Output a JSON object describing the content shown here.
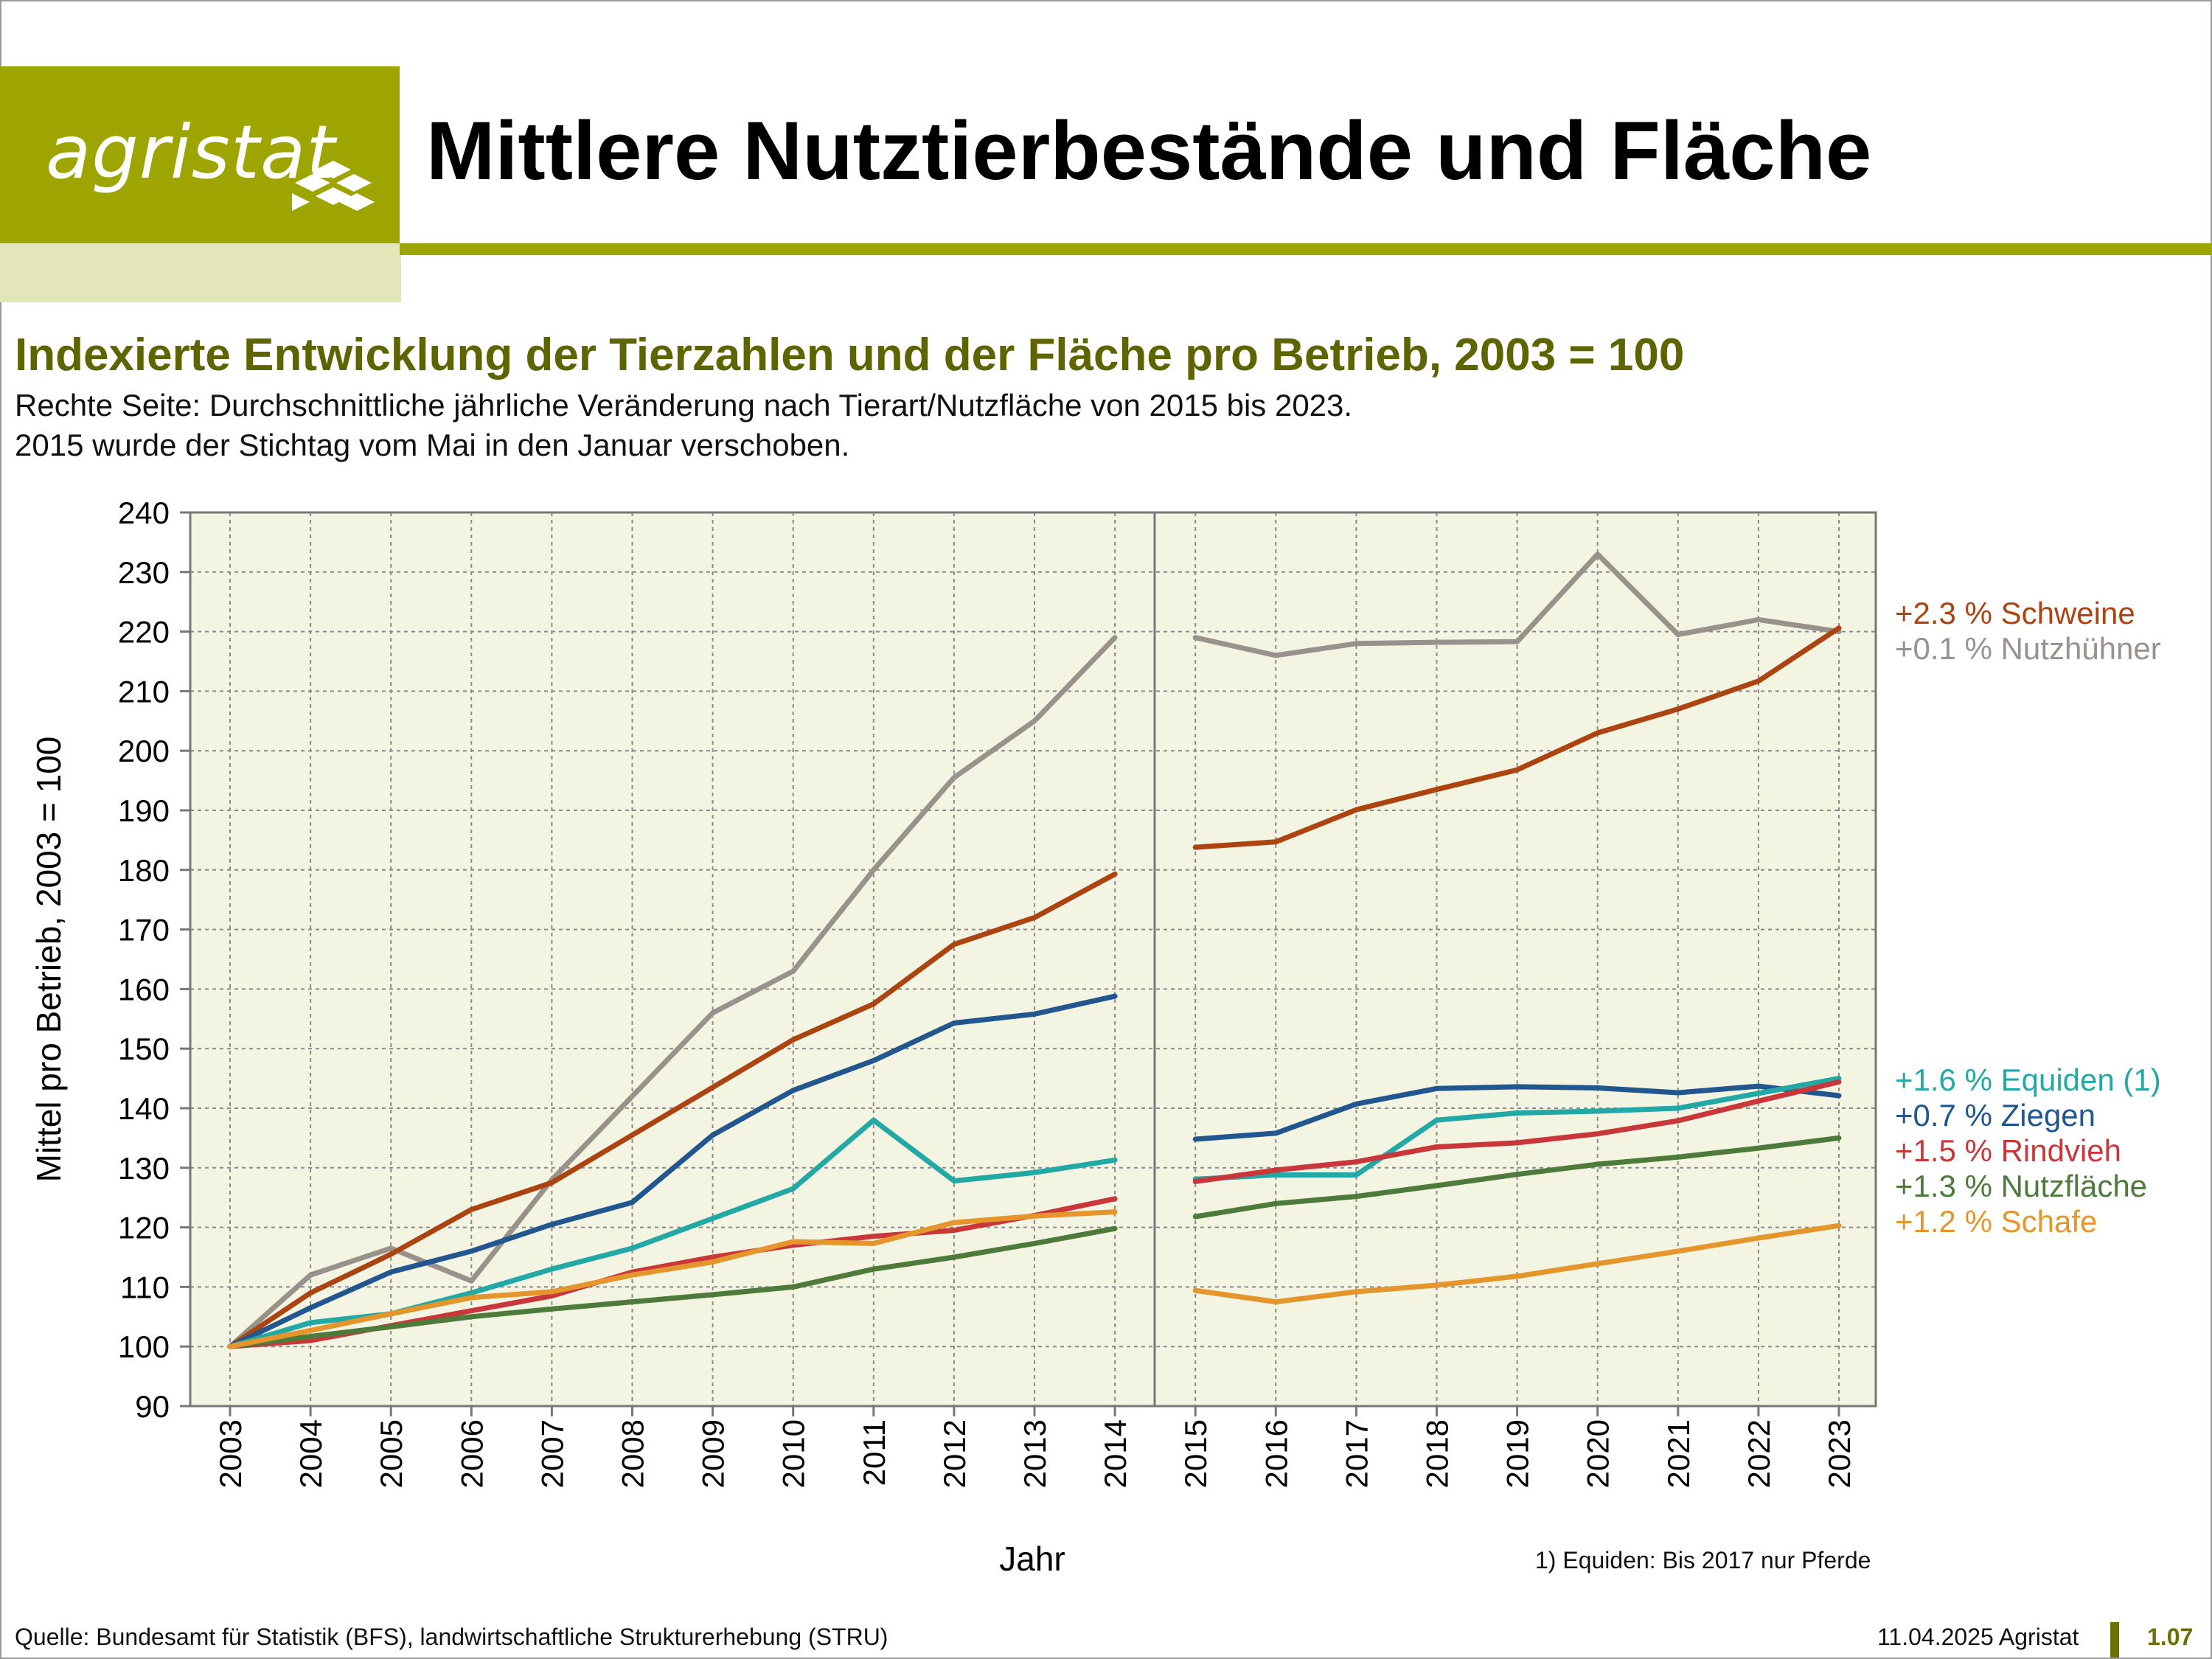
{
  "header": {
    "logo_text": "agristat",
    "title": "Mittlere Nutztierbestände und Fläche"
  },
  "chart_header": {
    "subtitle": "Indexierte Entwicklung der Tierzahlen und der Fläche pro Betrieb, 2003 = 100",
    "line1": "Rechte Seite: Durchschnittliche jährliche Veränderung nach Tierart/Nutzfläche von 2015 bis 2023.",
    "line2": "2015 wurde der Stichtag vom Mai in den Januar verschoben."
  },
  "footnote": "1) Equiden: Bis 2017 nur Pferde",
  "footer": {
    "source": "Quelle: Bundesamt für Statistik (BFS), landwirtschaftliche Strukturerhebung (STRU)",
    "date": "11.04.2025 Agristat",
    "page": "1.07"
  },
  "colors": {
    "brand": "#9ea400",
    "brand_light": "#e3e6b8",
    "plot_bg": "#f4f4e2"
  },
  "chart_data": {
    "type": "line",
    "xlabel": "Jahr",
    "ylabel": "Mittel pro Betrieb, 2003 = 100",
    "ylim": [
      90,
      240
    ],
    "yticks": [
      90,
      100,
      110,
      120,
      130,
      140,
      150,
      160,
      170,
      180,
      190,
      200,
      210,
      220,
      230,
      240
    ],
    "grid": true,
    "categories": [
      "2003",
      "2004",
      "2005",
      "2006",
      "2007",
      "2008",
      "2009",
      "2010",
      "2011",
      "2012",
      "2013",
      "2014",
      "2015",
      "2016",
      "2017",
      "2018",
      "2019",
      "2020",
      "2021",
      "2022",
      "2023"
    ],
    "break_after": "2014",
    "series": [
      {
        "key": "nutzhuehner",
        "color": "#99918b",
        "label": "+0.1 % Nutzhühner",
        "values": [
          100,
          112,
          116.5,
          111,
          128,
          142,
          156,
          163,
          180,
          195.5,
          205,
          219,
          219,
          216,
          218,
          218.2,
          218.3,
          233,
          219.5,
          222,
          220
        ]
      },
      {
        "key": "schweine",
        "color": "#ab4410",
        "label": "+2.3 % Schweine",
        "values": [
          100,
          109,
          115.5,
          123,
          127.5,
          135.5,
          143.5,
          151.5,
          157.5,
          167.5,
          172,
          179.3,
          183.8,
          184.7,
          190.1,
          193.5,
          196.8,
          203,
          207,
          211.7,
          220.6
        ]
      },
      {
        "key": "ziegen",
        "color": "#22568f",
        "label": "+0.7 % Ziegen",
        "values": [
          100,
          106.5,
          112.5,
          116,
          120.5,
          124.2,
          135.5,
          143,
          148,
          154.3,
          155.8,
          158.8,
          134.8,
          135.8,
          140.7,
          143.3,
          143.6,
          143.4,
          142.6,
          143.7,
          142.1
        ]
      },
      {
        "key": "equiden",
        "color": "#22a8a5",
        "label": "+1.6 % Equiden (1)",
        "values": [
          100,
          104,
          105.5,
          109,
          113,
          116.5,
          121.5,
          126.5,
          138,
          127.8,
          129.2,
          131.3,
          128.1,
          128.8,
          128.8,
          138,
          139.2,
          139.5,
          140,
          142.5,
          145
        ]
      },
      {
        "key": "rindvieh",
        "color": "#c9373b",
        "label": "+1.5 % Rindvieh",
        "values": [
          100,
          101,
          103.5,
          106,
          108.5,
          112.5,
          115,
          117,
          118.5,
          119.5,
          122,
          124.8,
          127.7,
          129.6,
          131,
          133.5,
          134.2,
          135.7,
          137.9,
          141.2,
          144.4
        ]
      },
      {
        "key": "nutzflaeche",
        "color": "#4e7a3b",
        "label": "+1.3 % Nutzfläche",
        "values": [
          100,
          101.7,
          103.3,
          105,
          106.3,
          107.5,
          108.7,
          110,
          113,
          115,
          117.3,
          119.8,
          121.8,
          124,
          125.2,
          127,
          128.9,
          130.6,
          131.8,
          133.3,
          135
        ]
      },
      {
        "key": "schafe",
        "color": "#e4952b",
        "label": "+1.2 % Schafe",
        "values": [
          100,
          102.7,
          105.5,
          108.2,
          109.2,
          112,
          114.2,
          117.6,
          117.3,
          120.8,
          121.9,
          122.6,
          109.4,
          107.5,
          109.2,
          110.3,
          111.8,
          113.9,
          116,
          118.2,
          120.3
        ]
      }
    ],
    "legend_top": [
      "schweine",
      "nutzhuehner"
    ],
    "legend_bottom": [
      "equiden",
      "ziegen",
      "rindvieh",
      "nutzflaeche",
      "schafe"
    ]
  }
}
